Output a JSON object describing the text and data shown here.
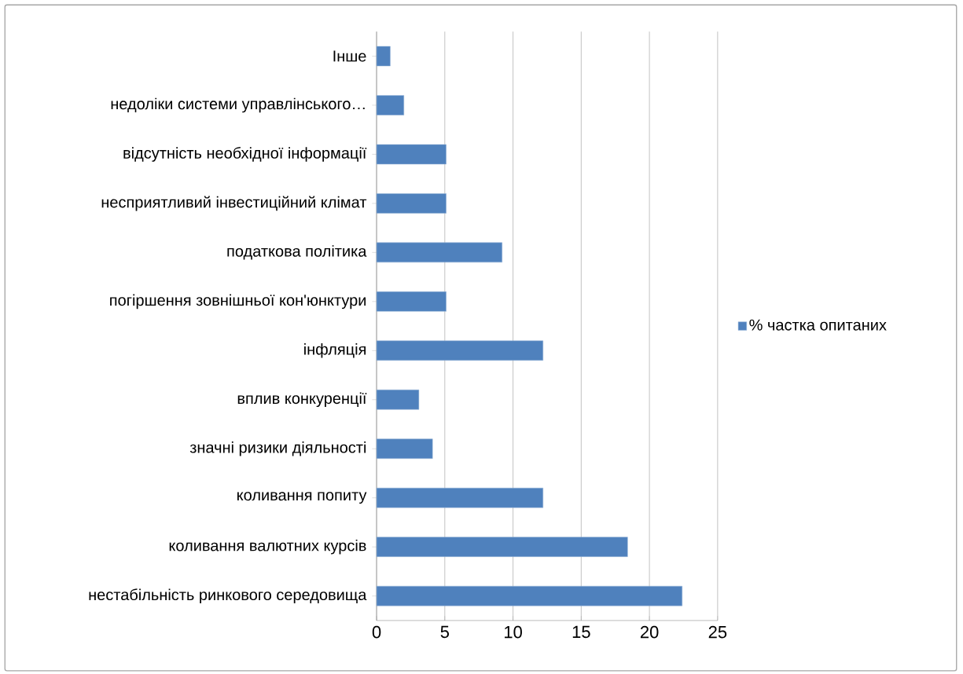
{
  "chart_data": {
    "type": "bar",
    "orientation": "horizontal",
    "categories": [
      "Інше",
      "недоліки системи управлінського…",
      "відсутність необхідної інформації",
      "несприятливий інвестиційний клімат",
      "податкова політика",
      "погіршення зовнішньої кон'юнктури",
      "інфляція",
      "вплив конкуренції",
      "значні ризики діяльності",
      "коливання попиту",
      "коливання валютних курсів",
      "нестабільність ринкового середовища"
    ],
    "series": [
      {
        "name": "% частка опитаних",
        "color": "#4f81bd",
        "values": [
          1.0,
          2.0,
          5.1,
          5.1,
          9.2,
          5.1,
          12.2,
          3.1,
          4.1,
          12.2,
          18.4,
          22.4
        ]
      }
    ],
    "xlim": [
      0,
      25
    ],
    "xticks": [
      0,
      5,
      10,
      15,
      20,
      25
    ],
    "grid": "x",
    "legend": "right"
  }
}
